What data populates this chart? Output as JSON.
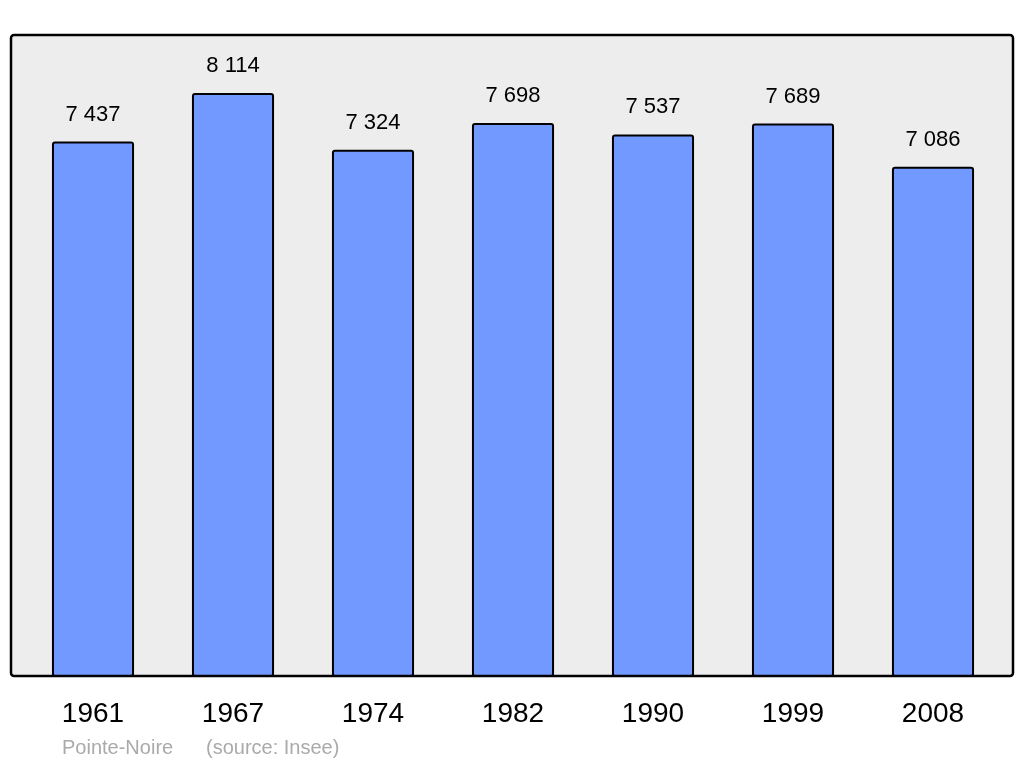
{
  "chart_data": {
    "type": "bar",
    "categories": [
      "1961",
      "1967",
      "1974",
      "1982",
      "1990",
      "1999",
      "2008"
    ],
    "values": [
      7437,
      8114,
      7324,
      7698,
      7537,
      7689,
      7086
    ],
    "value_labels": [
      "7 437",
      "8 114",
      "7 324",
      "7 698",
      "7 537",
      "7 689",
      "7 086"
    ],
    "color": "#7299ff",
    "annotations": [
      "Pointe-Noire",
      "(source: Insee)"
    ]
  }
}
